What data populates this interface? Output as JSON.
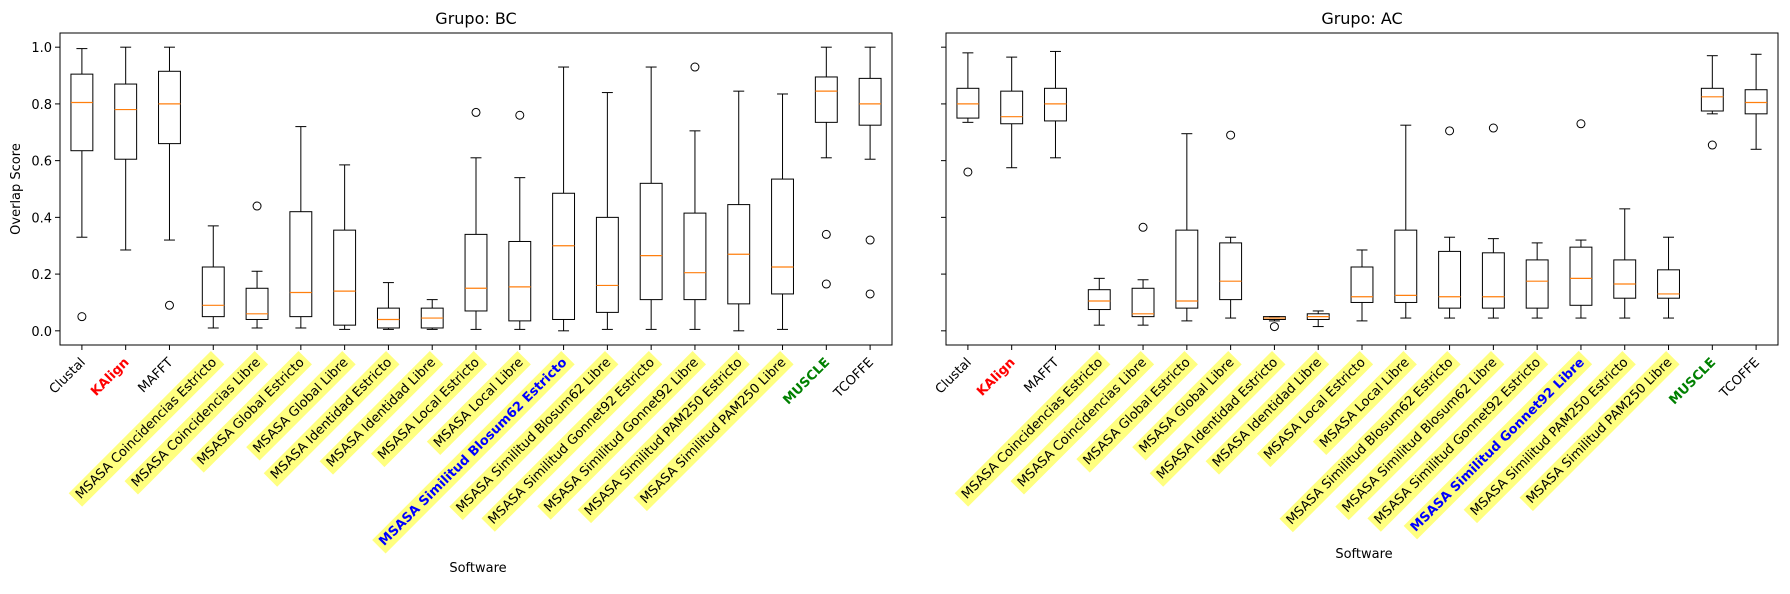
{
  "figure": {
    "ylabel": "Overlap Score",
    "xlabel": "Software"
  },
  "chart_data": [
    {
      "type": "box",
      "title": "Grupo: BC",
      "xlabel": "Software",
      "ylabel": "Overlap Score",
      "ylim": [
        -0.05,
        1.05
      ],
      "yticks": [
        "0.0",
        "0.2",
        "0.4",
        "0.6",
        "0.8",
        "1.0"
      ],
      "categories": [
        "Clustal",
        "KAlign",
        "MAFFT",
        "MSASA Coincidencias Estricto",
        "MSASA Coincidencias Libre",
        "MSASA Global Estricto",
        "MSASA Global Libre",
        "MSASA Identidad Estricto",
        "MSASA Identidad Libre",
        "MSASA Local Estricto",
        "MSASA Local Libre",
        "MSASA Similitud Blosum62 Estricto",
        "MSASA Similitud Blosum62 Libre",
        "MSASA Similitud Gonnet92 Estricto",
        "MSASA Similitud Gonnet92 Libre",
        "MSASA Similitud PAM250 Estricto",
        "MSASA Similitud PAM250 Libre",
        "MUSCLE",
        "TCOFFE"
      ],
      "label_styles": [
        "plain",
        "red",
        "plain",
        "hl",
        "hl",
        "hl",
        "hl",
        "hl",
        "hl",
        "hl",
        "hl",
        "blue-hl",
        "hl",
        "hl",
        "hl",
        "hl",
        "hl",
        "green",
        "plain"
      ],
      "boxes": [
        {
          "whislo": 0.33,
          "q1": 0.635,
          "med": 0.805,
          "q3": 0.905,
          "whishi": 0.995,
          "fliers": [
            0.05
          ]
        },
        {
          "whislo": 0.285,
          "q1": 0.605,
          "med": 0.78,
          "q3": 0.87,
          "whishi": 1.0,
          "fliers": []
        },
        {
          "whislo": 0.32,
          "q1": 0.66,
          "med": 0.8,
          "q3": 0.915,
          "whishi": 1.0,
          "fliers": [
            0.09
          ]
        },
        {
          "whislo": 0.01,
          "q1": 0.05,
          "med": 0.09,
          "q3": 0.225,
          "whishi": 0.37,
          "fliers": []
        },
        {
          "whislo": 0.01,
          "q1": 0.04,
          "med": 0.06,
          "q3": 0.15,
          "whishi": 0.21,
          "fliers": [
            0.44
          ]
        },
        {
          "whislo": 0.01,
          "q1": 0.05,
          "med": 0.135,
          "q3": 0.42,
          "whishi": 0.72,
          "fliers": []
        },
        {
          "whislo": 0.005,
          "q1": 0.02,
          "med": 0.14,
          "q3": 0.355,
          "whishi": 0.585,
          "fliers": []
        },
        {
          "whislo": 0.005,
          "q1": 0.01,
          "med": 0.04,
          "q3": 0.08,
          "whishi": 0.17,
          "fliers": []
        },
        {
          "whislo": 0.005,
          "q1": 0.01,
          "med": 0.045,
          "q3": 0.08,
          "whishi": 0.11,
          "fliers": []
        },
        {
          "whislo": 0.005,
          "q1": 0.07,
          "med": 0.15,
          "q3": 0.34,
          "whishi": 0.61,
          "fliers": [
            0.77
          ]
        },
        {
          "whislo": 0.005,
          "q1": 0.035,
          "med": 0.155,
          "q3": 0.315,
          "whishi": 0.54,
          "fliers": [
            0.76
          ]
        },
        {
          "whislo": 0.0,
          "q1": 0.04,
          "med": 0.3,
          "q3": 0.485,
          "whishi": 0.93,
          "fliers": []
        },
        {
          "whislo": 0.005,
          "q1": 0.065,
          "med": 0.16,
          "q3": 0.4,
          "whishi": 0.84,
          "fliers": []
        },
        {
          "whislo": 0.005,
          "q1": 0.11,
          "med": 0.265,
          "q3": 0.52,
          "whishi": 0.93,
          "fliers": []
        },
        {
          "whislo": 0.005,
          "q1": 0.11,
          "med": 0.205,
          "q3": 0.415,
          "whishi": 0.705,
          "fliers": [
            0.93
          ]
        },
        {
          "whislo": 0.0,
          "q1": 0.095,
          "med": 0.27,
          "q3": 0.445,
          "whishi": 0.845,
          "fliers": []
        },
        {
          "whislo": 0.005,
          "q1": 0.13,
          "med": 0.225,
          "q3": 0.535,
          "whishi": 0.835,
          "fliers": []
        },
        {
          "whislo": 0.61,
          "q1": 0.735,
          "med": 0.845,
          "q3": 0.895,
          "whishi": 1.0,
          "fliers": [
            0.34,
            0.165
          ]
        },
        {
          "whislo": 0.605,
          "q1": 0.725,
          "med": 0.8,
          "q3": 0.89,
          "whishi": 1.0,
          "fliers": [
            0.32,
            0.13
          ]
        }
      ]
    },
    {
      "type": "box",
      "title": "Grupo: AC",
      "xlabel": "Software",
      "ylabel": "",
      "ylim": [
        -0.05,
        1.05
      ],
      "yticks": [
        "",
        "",
        "",
        "",
        "",
        ""
      ],
      "categories": [
        "Clustal",
        "KAlign",
        "MAFFT",
        "MSASA Coincidencias Estricto",
        "MSASA Coincidencias Libre",
        "MSASA Global Estricto",
        "MSASA Global Libre",
        "MSASA Identidad Estricto",
        "MSASA Identidad Libre",
        "MSASA Local Estricto",
        "MSASA Local Libre",
        "MSASA Similitud Blosum62 Estricto",
        "MSASA Similitud Blosum62 Libre",
        "MSASA Similitud Gonnet92 Estricto",
        "MSASA Similitud Gonnet92 Libre",
        "MSASA Similitud PAM250 Estricto",
        "MSASA Similitud PAM250 Libre",
        "MUSCLE",
        "TCOFFE"
      ],
      "label_styles": [
        "plain",
        "red",
        "plain",
        "hl",
        "hl",
        "hl",
        "hl",
        "hl",
        "hl",
        "hl",
        "hl",
        "hl",
        "hl",
        "hl",
        "blue-hl",
        "hl",
        "hl",
        "green",
        "plain"
      ],
      "boxes": [
        {
          "whislo": 0.735,
          "q1": 0.75,
          "med": 0.8,
          "q3": 0.855,
          "whishi": 0.98,
          "fliers": [
            0.56
          ]
        },
        {
          "whislo": 0.575,
          "q1": 0.73,
          "med": 0.755,
          "q3": 0.845,
          "whishi": 0.965,
          "fliers": []
        },
        {
          "whislo": 0.61,
          "q1": 0.74,
          "med": 0.8,
          "q3": 0.855,
          "whishi": 0.985,
          "fliers": []
        },
        {
          "whislo": 0.02,
          "q1": 0.075,
          "med": 0.105,
          "q3": 0.145,
          "whishi": 0.185,
          "fliers": []
        },
        {
          "whislo": 0.02,
          "q1": 0.05,
          "med": 0.06,
          "q3": 0.15,
          "whishi": 0.18,
          "fliers": [
            0.365
          ]
        },
        {
          "whislo": 0.035,
          "q1": 0.08,
          "med": 0.105,
          "q3": 0.355,
          "whishi": 0.695,
          "fliers": []
        },
        {
          "whislo": 0.045,
          "q1": 0.11,
          "med": 0.175,
          "q3": 0.31,
          "whishi": 0.33,
          "fliers": [
            0.69
          ]
        },
        {
          "whislo": 0.035,
          "q1": 0.04,
          "med": 0.045,
          "q3": 0.05,
          "whishi": 0.05,
          "fliers": [
            0.015
          ]
        },
        {
          "whislo": 0.015,
          "q1": 0.04,
          "med": 0.05,
          "q3": 0.06,
          "whishi": 0.07,
          "fliers": []
        },
        {
          "whislo": 0.035,
          "q1": 0.1,
          "med": 0.12,
          "q3": 0.225,
          "whishi": 0.285,
          "fliers": []
        },
        {
          "whislo": 0.045,
          "q1": 0.1,
          "med": 0.125,
          "q3": 0.355,
          "whishi": 0.725,
          "fliers": []
        },
        {
          "whislo": 0.045,
          "q1": 0.08,
          "med": 0.12,
          "q3": 0.28,
          "whishi": 0.33,
          "fliers": [
            0.705
          ]
        },
        {
          "whislo": 0.045,
          "q1": 0.08,
          "med": 0.12,
          "q3": 0.275,
          "whishi": 0.325,
          "fliers": [
            0.715
          ]
        },
        {
          "whislo": 0.045,
          "q1": 0.08,
          "med": 0.175,
          "q3": 0.25,
          "whishi": 0.31,
          "fliers": []
        },
        {
          "whislo": 0.045,
          "q1": 0.09,
          "med": 0.185,
          "q3": 0.295,
          "whishi": 0.32,
          "fliers": [
            0.73
          ]
        },
        {
          "whislo": 0.045,
          "q1": 0.115,
          "med": 0.165,
          "q3": 0.25,
          "whishi": 0.43,
          "fliers": []
        },
        {
          "whislo": 0.045,
          "q1": 0.115,
          "med": 0.13,
          "q3": 0.215,
          "whishi": 0.33,
          "fliers": []
        },
        {
          "whislo": 0.765,
          "q1": 0.775,
          "med": 0.825,
          "q3": 0.855,
          "whishi": 0.97,
          "fliers": [
            0.655
          ]
        },
        {
          "whislo": 0.64,
          "q1": 0.765,
          "med": 0.805,
          "q3": 0.85,
          "whishi": 0.975,
          "fliers": []
        }
      ]
    }
  ]
}
